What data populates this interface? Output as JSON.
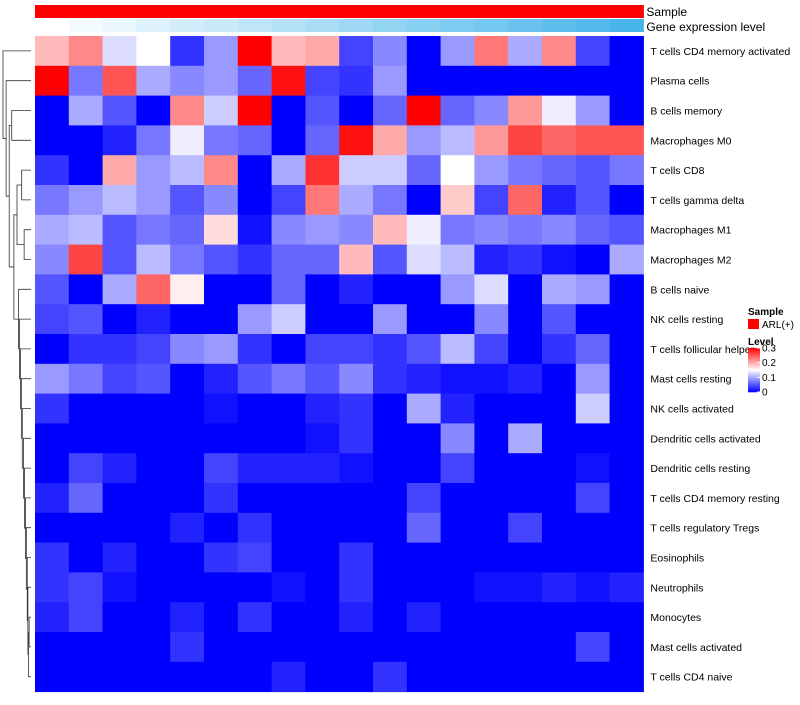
{
  "chart_data": {
    "type": "heatmap",
    "title": "",
    "columns": 18,
    "annotations": [
      {
        "name": "Sample",
        "kind": "categorical"
      },
      {
        "name": "Gene expression level",
        "kind": "gradient"
      }
    ],
    "rows": [
      "T cells CD4 memory activated",
      "Plasma cells",
      "B cells memory",
      "Macrophages M0",
      "T cells CD8",
      "T cells gamma delta",
      "Macrophages M1",
      "Macrophages M2",
      "B cells naive",
      "NK cells resting",
      "T cells follicular helper",
      "Mast cells resting",
      "NK cells activated",
      "Dendritic cells activated",
      "Dendritic cells resting",
      "T cells CD4 memory resting",
      "T cells regulatory  Tregs",
      "Eosinophils",
      "Neutrophils",
      "Monocytes",
      "Mast cells activated",
      "T cells CD4 naive"
    ],
    "values": [
      [
        0.19,
        0.22,
        0.13,
        0.15,
        0.03,
        0.09,
        0.3,
        0.19,
        0.2,
        0.04,
        0.08,
        0.0,
        0.09,
        0.23,
        0.1,
        0.22,
        0.04,
        0.0
      ],
      [
        0.3,
        0.07,
        0.25,
        0.1,
        0.08,
        0.09,
        0.06,
        0.29,
        0.04,
        0.03,
        0.09,
        0.0,
        0.0,
        0.0,
        0.0,
        0.0,
        0.0,
        0.0
      ],
      [
        0.0,
        0.1,
        0.05,
        0.0,
        0.22,
        0.12,
        0.3,
        0.0,
        0.05,
        0.0,
        0.06,
        0.3,
        0.06,
        0.08,
        0.21,
        0.14,
        0.09,
        0.0
      ],
      [
        0.0,
        0.0,
        0.02,
        0.07,
        0.14,
        0.07,
        0.06,
        0.0,
        0.06,
        0.29,
        0.2,
        0.09,
        0.11,
        0.21,
        0.26,
        0.24,
        0.25,
        0.25
      ],
      [
        0.03,
        0.0,
        0.2,
        0.09,
        0.11,
        0.22,
        0.0,
        0.1,
        0.27,
        0.12,
        0.12,
        0.06,
        0.15,
        0.09,
        0.07,
        0.06,
        0.05,
        0.07
      ],
      [
        0.07,
        0.09,
        0.11,
        0.09,
        0.05,
        0.08,
        0.0,
        0.04,
        0.23,
        0.1,
        0.07,
        0.0,
        0.18,
        0.04,
        0.24,
        0.02,
        0.05,
        0.0
      ],
      [
        0.1,
        0.11,
        0.05,
        0.07,
        0.06,
        0.17,
        0.01,
        0.08,
        0.09,
        0.08,
        0.19,
        0.14,
        0.07,
        0.08,
        0.07,
        0.08,
        0.06,
        0.05
      ],
      [
        0.08,
        0.26,
        0.05,
        0.11,
        0.07,
        0.05,
        0.03,
        0.06,
        0.06,
        0.19,
        0.05,
        0.13,
        0.11,
        0.02,
        0.03,
        0.01,
        0.0,
        0.1
      ],
      [
        0.05,
        0.0,
        0.1,
        0.24,
        0.16,
        0.0,
        0.0,
        0.06,
        0.0,
        0.02,
        0.0,
        0.0,
        0.09,
        0.13,
        0.0,
        0.1,
        0.09,
        0.0
      ],
      [
        0.04,
        0.05,
        0.0,
        0.02,
        0.0,
        0.0,
        0.09,
        0.12,
        0.0,
        0.0,
        0.09,
        0.0,
        0.0,
        0.08,
        0.0,
        0.05,
        0.0,
        0.0
      ],
      [
        0.0,
        0.03,
        0.03,
        0.04,
        0.08,
        0.09,
        0.03,
        0.0,
        0.04,
        0.04,
        0.03,
        0.05,
        0.11,
        0.04,
        0.0,
        0.03,
        0.06,
        0.0
      ],
      [
        0.09,
        0.07,
        0.04,
        0.05,
        0.0,
        0.02,
        0.05,
        0.07,
        0.05,
        0.08,
        0.03,
        0.02,
        0.01,
        0.01,
        0.02,
        0.0,
        0.09,
        0.0
      ],
      [
        0.03,
        0.0,
        0.0,
        0.0,
        0.0,
        0.01,
        0.0,
        0.0,
        0.02,
        0.03,
        0.0,
        0.1,
        0.02,
        0.0,
        0.0,
        0.0,
        0.12,
        0.0
      ],
      [
        0.0,
        0.0,
        0.0,
        0.0,
        0.0,
        0.0,
        0.0,
        0.0,
        0.01,
        0.03,
        0.0,
        0.0,
        0.08,
        0.0,
        0.1,
        0.0,
        0.0,
        0.0
      ],
      [
        0.0,
        0.04,
        0.02,
        0.0,
        0.0,
        0.04,
        0.02,
        0.02,
        0.02,
        0.01,
        0.0,
        0.0,
        0.04,
        0.0,
        0.0,
        0.0,
        0.01,
        0.0
      ],
      [
        0.02,
        0.06,
        0.0,
        0.0,
        0.0,
        0.03,
        0.0,
        0.0,
        0.0,
        0.0,
        0.0,
        0.04,
        0.0,
        0.0,
        0.0,
        0.0,
        0.04,
        0.0
      ],
      [
        0.0,
        0.0,
        0.0,
        0.0,
        0.02,
        0.0,
        0.03,
        0.0,
        0.0,
        0.0,
        0.0,
        0.06,
        0.0,
        0.0,
        0.04,
        0.0,
        0.0,
        0.0
      ],
      [
        0.03,
        0.0,
        0.02,
        0.0,
        0.0,
        0.03,
        0.04,
        0.0,
        0.0,
        0.03,
        0.0,
        0.0,
        0.0,
        0.0,
        0.0,
        0.0,
        0.0,
        0.0
      ],
      [
        0.03,
        0.04,
        0.01,
        0.0,
        0.0,
        0.0,
        0.0,
        0.01,
        0.0,
        0.03,
        0.0,
        0.0,
        0.0,
        0.01,
        0.01,
        0.02,
        0.01,
        0.02
      ],
      [
        0.02,
        0.04,
        0.0,
        0.0,
        0.02,
        0.0,
        0.03,
        0.0,
        0.0,
        0.02,
        0.0,
        0.02,
        0.0,
        0.0,
        0.0,
        0.0,
        0.0,
        0.0
      ],
      [
        0.0,
        0.0,
        0.0,
        0.0,
        0.03,
        0.0,
        0.0,
        0.0,
        0.0,
        0.0,
        0.0,
        0.0,
        0.0,
        0.0,
        0.0,
        0.0,
        0.04,
        0.0
      ],
      [
        0.0,
        0.0,
        0.0,
        0.0,
        0.0,
        0.0,
        0.0,
        0.02,
        0.0,
        0.0,
        0.03,
        0.0,
        0.0,
        0.0,
        0.0,
        0.0,
        0.0,
        0.0
      ]
    ],
    "gene_expression_level": [
      0.0,
      0.06,
      0.12,
      0.18,
      0.24,
      0.29,
      0.35,
      0.41,
      0.47,
      0.53,
      0.59,
      0.65,
      0.71,
      0.76,
      0.82,
      0.88,
      0.94,
      1.0
    ],
    "sample_values": [
      "ARL(+)",
      "ARL(+)",
      "ARL(+)",
      "ARL(+)",
      "ARL(+)",
      "ARL(+)",
      "ARL(+)",
      "ARL(+)",
      "ARL(+)",
      "ARL(+)",
      "ARL(+)",
      "ARL(+)",
      "ARL(+)",
      "ARL(+)",
      "ARL(+)",
      "ARL(+)",
      "ARL(+)",
      "ARL(+)"
    ],
    "color_scale": {
      "low": "#0000ff",
      "mid": "#ffffff",
      "high": "#ff0000",
      "domain": [
        0,
        0.15,
        0.3
      ]
    },
    "annotation_colors": {
      "sample": "#ff0000",
      "gene_low": "#ffffff",
      "gene_high": "#48b6ea"
    },
    "legend": {
      "sample_title": "Sample",
      "sample_entries": [
        {
          "label": "ARL(+)",
          "color": "#ff0000"
        }
      ],
      "level_title": "Level",
      "level_ticks": [
        "0.3",
        "0.2",
        "0.1",
        "0"
      ],
      "level_tick_values": [
        0.3,
        0.2,
        0.1,
        0
      ]
    },
    "row_dendrogram": {
      "merges": [
        [
          -20,
          -21
        ],
        [
          -22,
          1
        ],
        [
          -19,
          2
        ],
        [
          -18,
          3
        ],
        [
          -17,
          4
        ],
        [
          -16,
          5
        ],
        [
          -15,
          6
        ],
        [
          -14,
          7
        ],
        [
          -13,
          8
        ],
        [
          -12,
          9
        ],
        [
          -11,
          10
        ],
        [
          -10,
          11
        ],
        [
          -9,
          12
        ],
        [
          -7,
          -8
        ],
        [
          -5,
          -6
        ],
        [
          14,
          15
        ],
        [
          13,
          16
        ],
        [
          -3,
          -4
        ],
        [
          17,
          18
        ],
        [
          -2,
          19
        ],
        [
          -1,
          20
        ]
      ],
      "heights": [
        0.06,
        0.08,
        0.1,
        0.12,
        0.15,
        0.18,
        0.21,
        0.24,
        0.28,
        0.31,
        0.34,
        0.37,
        0.4,
        0.22,
        0.3,
        0.45,
        0.55,
        0.62,
        0.7,
        0.8,
        0.9
      ]
    }
  }
}
